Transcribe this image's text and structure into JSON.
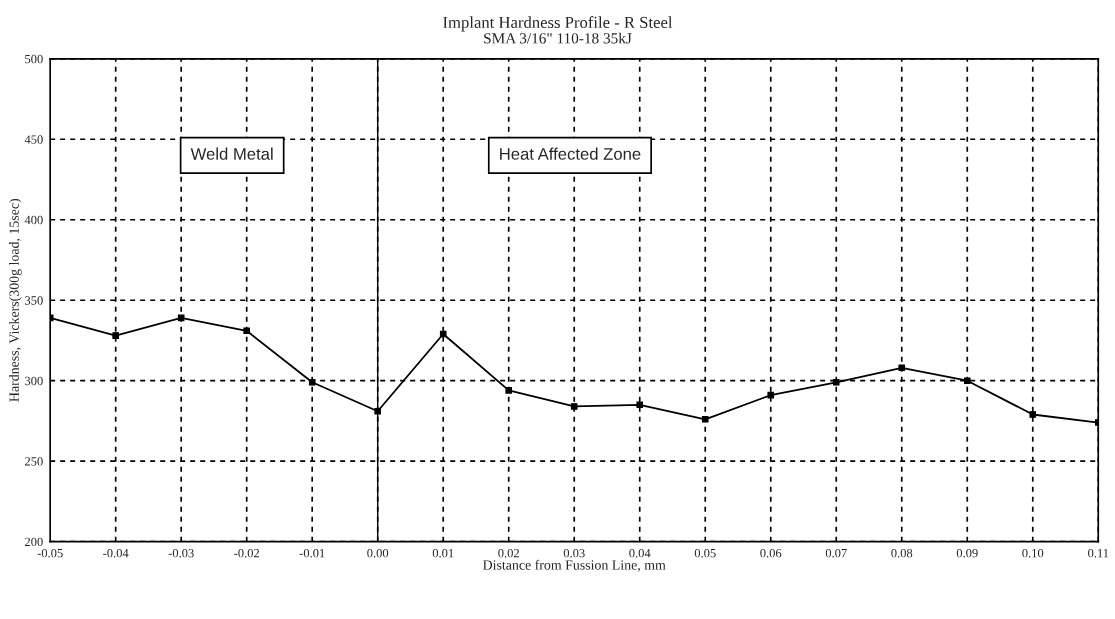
{
  "chart_data": {
    "type": "line",
    "title": "Implant Hardness Profile - R Steel",
    "subtitle": "SMA 3/16\" 110-18 35kJ",
    "xlabel": "Distance from Fussion Line, mm",
    "ylabel": "Hardness, Vickers(300g load, 15sec)",
    "x": [
      -0.05,
      -0.04,
      -0.03,
      -0.02,
      -0.01,
      0.0,
      0.01,
      0.02,
      0.03,
      0.04,
      0.05,
      0.06,
      0.07,
      0.08,
      0.09,
      0.1,
      0.11
    ],
    "series": [
      {
        "color": "#000000",
        "values": [
          339,
          328,
          339,
          331,
          299,
          281,
          329,
          294,
          284,
          285,
          276,
          291,
          299,
          308,
          300,
          279,
          274
        ]
      }
    ],
    "xlim": [
      -0.05,
      0.11
    ],
    "xticks": [
      {
        "value": -0.05,
        "label": "-0.05"
      },
      {
        "value": -0.04,
        "label": "-0.04"
      },
      {
        "value": -0.03,
        "label": "-0.03"
      },
      {
        "value": -0.02,
        "label": "-0.02"
      },
      {
        "value": -0.01,
        "label": "-0.01"
      },
      {
        "value": 0.0,
        "label": "0.00"
      },
      {
        "value": 0.01,
        "label": "0.01"
      },
      {
        "value": 0.02,
        "label": "0.02"
      },
      {
        "value": 0.03,
        "label": "0.03"
      },
      {
        "value": 0.04,
        "label": "0.04"
      },
      {
        "value": 0.05,
        "label": "0.05"
      },
      {
        "value": 0.06,
        "label": "0.06"
      },
      {
        "value": 0.07,
        "label": "0.07"
      },
      {
        "value": 0.08,
        "label": "0.08"
      },
      {
        "value": 0.09,
        "label": "0.09"
      },
      {
        "value": 0.1,
        "label": "0.10"
      },
      {
        "value": 0.11,
        "label": "0.11"
      }
    ],
    "ylim": [
      200,
      500
    ],
    "yticks": [
      200,
      250,
      300,
      350,
      400,
      450,
      500
    ],
    "ref_lines": [
      {
        "axis": "x",
        "value": 0.0,
        "color": "#000000",
        "line_style": "solid"
      }
    ],
    "annotations": [
      "Weld Metal",
      "Heat Affected Zone"
    ],
    "grid": true,
    "marker": "square",
    "line_style": "solid"
  }
}
